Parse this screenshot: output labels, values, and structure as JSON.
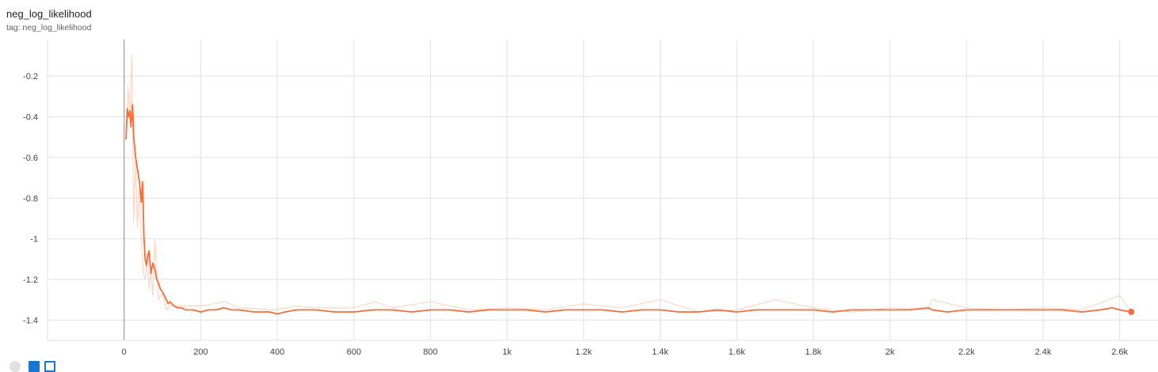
{
  "card": {
    "title": "neg_log_likelihood",
    "tag": "tag: neg_log_likelihood"
  },
  "toolbar": {
    "icons": [
      "expand-icon",
      "log-scale-icon",
      "fit-domain-icon"
    ]
  },
  "colors": {
    "series": "#f46d3a",
    "raw_series": "#fbc5ad",
    "grid": "#e0e0e0",
    "axis": "#9e9e9e"
  },
  "chart_data": {
    "type": "line",
    "title": "neg_log_likelihood",
    "xlabel": "",
    "ylabel": "",
    "xlim": [
      -200,
      2700
    ],
    "ylim": [
      -1.5,
      -0.02
    ],
    "grid": true,
    "legend": "none",
    "x_ticks": [
      {
        "value": 0,
        "label": "0"
      },
      {
        "value": 200,
        "label": "200"
      },
      {
        "value": 400,
        "label": "400"
      },
      {
        "value": 600,
        "label": "600"
      },
      {
        "value": 800,
        "label": "800"
      },
      {
        "value": 1000,
        "label": "1k"
      },
      {
        "value": 1200,
        "label": "1.2k"
      },
      {
        "value": 1400,
        "label": "1.4k"
      },
      {
        "value": 1600,
        "label": "1.6k"
      },
      {
        "value": 1800,
        "label": "1.8k"
      },
      {
        "value": 2000,
        "label": "2k"
      },
      {
        "value": 2200,
        "label": "2.2k"
      },
      {
        "value": 2400,
        "label": "2.4k"
      },
      {
        "value": 2600,
        "label": "2.6k"
      }
    ],
    "y_ticks": [
      {
        "value": -0.2,
        "label": "-0.2"
      },
      {
        "value": -0.4,
        "label": "-0.4"
      },
      {
        "value": -0.6,
        "label": "-0.6"
      },
      {
        "value": -0.8,
        "label": "-0.8"
      },
      {
        "value": -1.0,
        "label": "-1"
      },
      {
        "value": -1.2,
        "label": "-1.2"
      },
      {
        "value": -1.4,
        "label": "-1.4"
      }
    ],
    "series": [
      {
        "kind": "raw",
        "x": [
          5,
          10,
          15,
          20,
          25,
          30,
          35,
          40,
          45,
          50,
          55,
          60,
          65,
          70,
          75,
          80,
          90,
          100,
          110,
          120,
          130,
          150,
          200,
          265,
          300,
          400,
          450,
          500,
          550,
          600,
          655,
          700,
          800,
          900,
          1000,
          1100,
          1200,
          1300,
          1400,
          1500,
          1600,
          1700,
          1800,
          1900,
          2000,
          2100,
          2110,
          2200,
          2300,
          2400,
          2500,
          2600,
          2630
        ],
        "y": [
          -0.52,
          -0.25,
          -0.4,
          -0.1,
          -0.92,
          -0.62,
          -0.95,
          -0.75,
          -1.0,
          -1.17,
          -1.2,
          -1.08,
          -1.25,
          -1.15,
          -1.28,
          -1.0,
          -1.3,
          -1.27,
          -1.35,
          -1.33,
          -1.33,
          -1.33,
          -1.33,
          -1.31,
          -1.34,
          -1.35,
          -1.33,
          -1.34,
          -1.34,
          -1.34,
          -1.31,
          -1.34,
          -1.31,
          -1.35,
          -1.34,
          -1.35,
          -1.32,
          -1.34,
          -1.3,
          -1.36,
          -1.35,
          -1.3,
          -1.34,
          -1.36,
          -1.34,
          -1.35,
          -1.3,
          -1.34,
          -1.35,
          -1.34,
          -1.35,
          -1.28,
          -1.36
        ]
      },
      {
        "kind": "smoothed",
        "x": [
          5,
          8,
          12,
          15,
          18,
          22,
          25,
          30,
          35,
          40,
          45,
          48,
          52,
          55,
          58,
          62,
          65,
          70,
          75,
          80,
          85,
          90,
          95,
          100,
          105,
          110,
          115,
          120,
          130,
          140,
          150,
          160,
          180,
          200,
          220,
          240,
          260,
          280,
          300,
          340,
          380,
          400,
          420,
          450,
          500,
          550,
          600,
          650,
          700,
          750,
          800,
          850,
          900,
          950,
          1000,
          1050,
          1100,
          1150,
          1200,
          1250,
          1300,
          1350,
          1400,
          1450,
          1500,
          1550,
          1600,
          1650,
          1700,
          1750,
          1800,
          1850,
          1900,
          1950,
          2000,
          2050,
          2100,
          2110,
          2150,
          2200,
          2250,
          2300,
          2350,
          2400,
          2450,
          2500,
          2550,
          2580,
          2600,
          2630
        ],
        "y": [
          -0.51,
          -0.36,
          -0.4,
          -0.37,
          -0.45,
          -0.34,
          -0.5,
          -0.6,
          -0.66,
          -0.72,
          -0.82,
          -0.72,
          -1.0,
          -1.1,
          -1.13,
          -1.08,
          -1.06,
          -1.17,
          -1.12,
          -1.15,
          -1.2,
          -1.22,
          -1.25,
          -1.26,
          -1.28,
          -1.3,
          -1.32,
          -1.31,
          -1.33,
          -1.34,
          -1.34,
          -1.35,
          -1.35,
          -1.36,
          -1.35,
          -1.35,
          -1.34,
          -1.35,
          -1.35,
          -1.36,
          -1.36,
          -1.37,
          -1.36,
          -1.35,
          -1.35,
          -1.36,
          -1.36,
          -1.35,
          -1.35,
          -1.36,
          -1.35,
          -1.35,
          -1.36,
          -1.35,
          -1.35,
          -1.35,
          -1.36,
          -1.35,
          -1.35,
          -1.35,
          -1.36,
          -1.35,
          -1.35,
          -1.36,
          -1.36,
          -1.35,
          -1.36,
          -1.35,
          -1.35,
          -1.35,
          -1.35,
          -1.36,
          -1.35,
          -1.35,
          -1.35,
          -1.35,
          -1.34,
          -1.35,
          -1.36,
          -1.35,
          -1.35,
          -1.35,
          -1.35,
          -1.35,
          -1.35,
          -1.36,
          -1.35,
          -1.34,
          -1.35,
          -1.36
        ]
      }
    ]
  }
}
